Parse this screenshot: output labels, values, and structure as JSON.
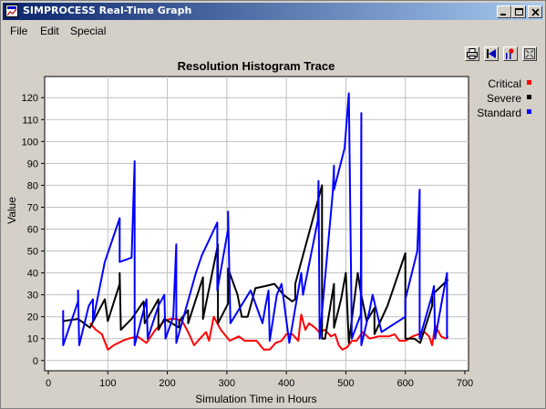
{
  "window": {
    "title": "SIMPROCESS Real-Time Graph",
    "controls": [
      "minimize-icon",
      "maximize-icon",
      "close-icon"
    ]
  },
  "menu": {
    "items": [
      "File",
      "Edit",
      "Special"
    ]
  },
  "toolbar": {
    "icons": [
      "print-icon",
      "rewind-icon",
      "marker-icon",
      "zoom-fit-icon"
    ]
  },
  "colors": {
    "Critical": "#ff0000",
    "Severe": "#000000",
    "Standard": "#0000ff"
  },
  "chart_data": {
    "type": "line",
    "title": "Resolution Histogram Trace",
    "xlabel": "Simulation Time in Hours",
    "ylabel": "Value",
    "xlim": [
      0,
      700
    ],
    "ylim": [
      -3,
      128
    ],
    "xticks": [
      0,
      100,
      200,
      300,
      400,
      500,
      600,
      700
    ],
    "yticks": [
      0,
      10,
      20,
      30,
      40,
      50,
      60,
      70,
      80,
      90,
      100,
      110,
      120
    ],
    "grid": true,
    "legend": "top-right",
    "series": [
      {
        "name": "Critical",
        "color": "#ff0000",
        "points": [
          [
            70,
            17
          ],
          [
            80,
            14
          ],
          [
            90,
            12
          ],
          [
            100,
            5
          ],
          [
            110,
            7
          ],
          [
            125,
            9
          ],
          [
            135,
            10
          ],
          [
            150,
            11
          ],
          [
            165,
            8
          ],
          [
            180,
            14
          ],
          [
            195,
            18
          ],
          [
            205,
            19
          ],
          [
            215,
            19
          ],
          [
            225,
            18
          ],
          [
            235,
            13
          ],
          [
            245,
            7
          ],
          [
            255,
            10
          ],
          [
            265,
            13
          ],
          [
            270,
            9
          ],
          [
            278,
            20
          ],
          [
            290,
            14
          ],
          [
            305,
            9
          ],
          [
            320,
            11
          ],
          [
            330,
            9
          ],
          [
            350,
            9
          ],
          [
            362,
            5
          ],
          [
            372,
            5
          ],
          [
            382,
            8
          ],
          [
            392,
            9
          ],
          [
            400,
            12
          ],
          [
            410,
            12
          ],
          [
            420,
            9
          ],
          [
            425,
            21
          ],
          [
            432,
            14
          ],
          [
            438,
            17
          ],
          [
            448,
            15
          ],
          [
            455,
            13
          ],
          [
            465,
            14
          ],
          [
            475,
            11
          ],
          [
            482,
            12
          ],
          [
            488,
            7
          ],
          [
            494,
            5
          ],
          [
            502,
            6
          ],
          [
            510,
            9
          ],
          [
            518,
            9
          ],
          [
            528,
            13
          ],
          [
            540,
            10
          ],
          [
            555,
            11
          ],
          [
            572,
            11
          ],
          [
            582,
            12
          ],
          [
            590,
            9
          ],
          [
            600,
            9
          ],
          [
            612,
            11
          ],
          [
            622,
            12
          ],
          [
            632,
            13
          ],
          [
            640,
            11
          ],
          [
            645,
            7
          ],
          [
            650,
            16
          ],
          [
            660,
            11
          ],
          [
            668,
            10
          ],
          [
            672,
            11
          ]
        ]
      },
      {
        "name": "Severe",
        "color": "#000000",
        "points": [
          [
            25,
            18
          ],
          [
            50,
            19
          ],
          [
            70,
            15
          ],
          [
            95,
            28
          ],
          [
            100,
            18
          ],
          [
            120,
            35
          ],
          [
            120,
            40
          ],
          [
            122,
            14
          ],
          [
            140,
            19
          ],
          [
            160,
            27
          ],
          [
            162,
            17
          ],
          [
            185,
            28
          ],
          [
            185,
            14
          ],
          [
            195,
            19
          ],
          [
            220,
            15
          ],
          [
            220,
            18
          ],
          [
            235,
            23
          ],
          [
            235,
            17
          ],
          [
            260,
            38
          ],
          [
            260,
            19
          ],
          [
            285,
            53
          ],
          [
            285,
            17
          ],
          [
            302,
            26
          ],
          [
            302,
            42
          ],
          [
            318,
            30
          ],
          [
            325,
            20
          ],
          [
            335,
            20
          ],
          [
            348,
            33
          ],
          [
            365,
            34
          ],
          [
            380,
            35
          ],
          [
            395,
            30
          ],
          [
            410,
            27
          ],
          [
            415,
            28
          ],
          [
            415,
            35
          ],
          [
            460,
            80
          ],
          [
            460,
            10
          ],
          [
            465,
            10
          ],
          [
            480,
            35
          ],
          [
            480,
            15
          ],
          [
            492,
            28
          ],
          [
            500,
            40
          ],
          [
            505,
            8
          ],
          [
            520,
            40
          ],
          [
            525,
            31
          ],
          [
            535,
            18
          ],
          [
            548,
            24
          ],
          [
            548,
            12
          ],
          [
            570,
            25
          ],
          [
            600,
            49
          ],
          [
            600,
            10
          ],
          [
            615,
            10
          ],
          [
            625,
            8
          ],
          [
            645,
            25
          ],
          [
            645,
            30
          ],
          [
            672,
            37
          ]
        ]
      },
      {
        "name": "Standard",
        "color": "#0000ff",
        "points": [
          [
            25,
            23
          ],
          [
            25,
            7
          ],
          [
            50,
            27
          ],
          [
            50,
            32
          ],
          [
            52,
            7
          ],
          [
            68,
            25
          ],
          [
            75,
            28
          ],
          [
            75,
            18
          ],
          [
            95,
            45
          ],
          [
            120,
            65
          ],
          [
            120,
            45
          ],
          [
            140,
            47
          ],
          [
            145,
            91
          ],
          [
            145,
            7
          ],
          [
            165,
            28
          ],
          [
            167,
            10
          ],
          [
            185,
            25
          ],
          [
            195,
            30
          ],
          [
            197,
            10
          ],
          [
            210,
            20
          ],
          [
            215,
            53
          ],
          [
            215,
            8
          ],
          [
            248,
            40
          ],
          [
            258,
            48
          ],
          [
            284,
            63
          ],
          [
            284,
            32
          ],
          [
            302,
            60
          ],
          [
            302,
            68
          ],
          [
            306,
            17
          ],
          [
            340,
            32
          ],
          [
            360,
            17
          ],
          [
            365,
            25
          ],
          [
            370,
            32
          ],
          [
            372,
            9
          ],
          [
            384,
            30
          ],
          [
            392,
            35
          ],
          [
            405,
            8
          ],
          [
            425,
            40
          ],
          [
            428,
            30
          ],
          [
            453,
            64
          ],
          [
            454,
            82
          ],
          [
            456,
            10
          ],
          [
            478,
            77
          ],
          [
            480,
            89
          ],
          [
            480,
            78
          ],
          [
            498,
            97
          ],
          [
            505,
            122
          ],
          [
            510,
            10
          ],
          [
            525,
            21
          ],
          [
            526,
            113
          ],
          [
            526,
            7
          ],
          [
            540,
            23
          ],
          [
            545,
            30
          ],
          [
            560,
            13
          ],
          [
            600,
            20
          ],
          [
            600,
            28
          ],
          [
            620,
            50
          ],
          [
            624,
            78
          ],
          [
            624,
            10
          ],
          [
            645,
            30
          ],
          [
            648,
            34
          ],
          [
            650,
            10
          ],
          [
            670,
            40
          ],
          [
            670,
            10
          ]
        ]
      }
    ]
  }
}
